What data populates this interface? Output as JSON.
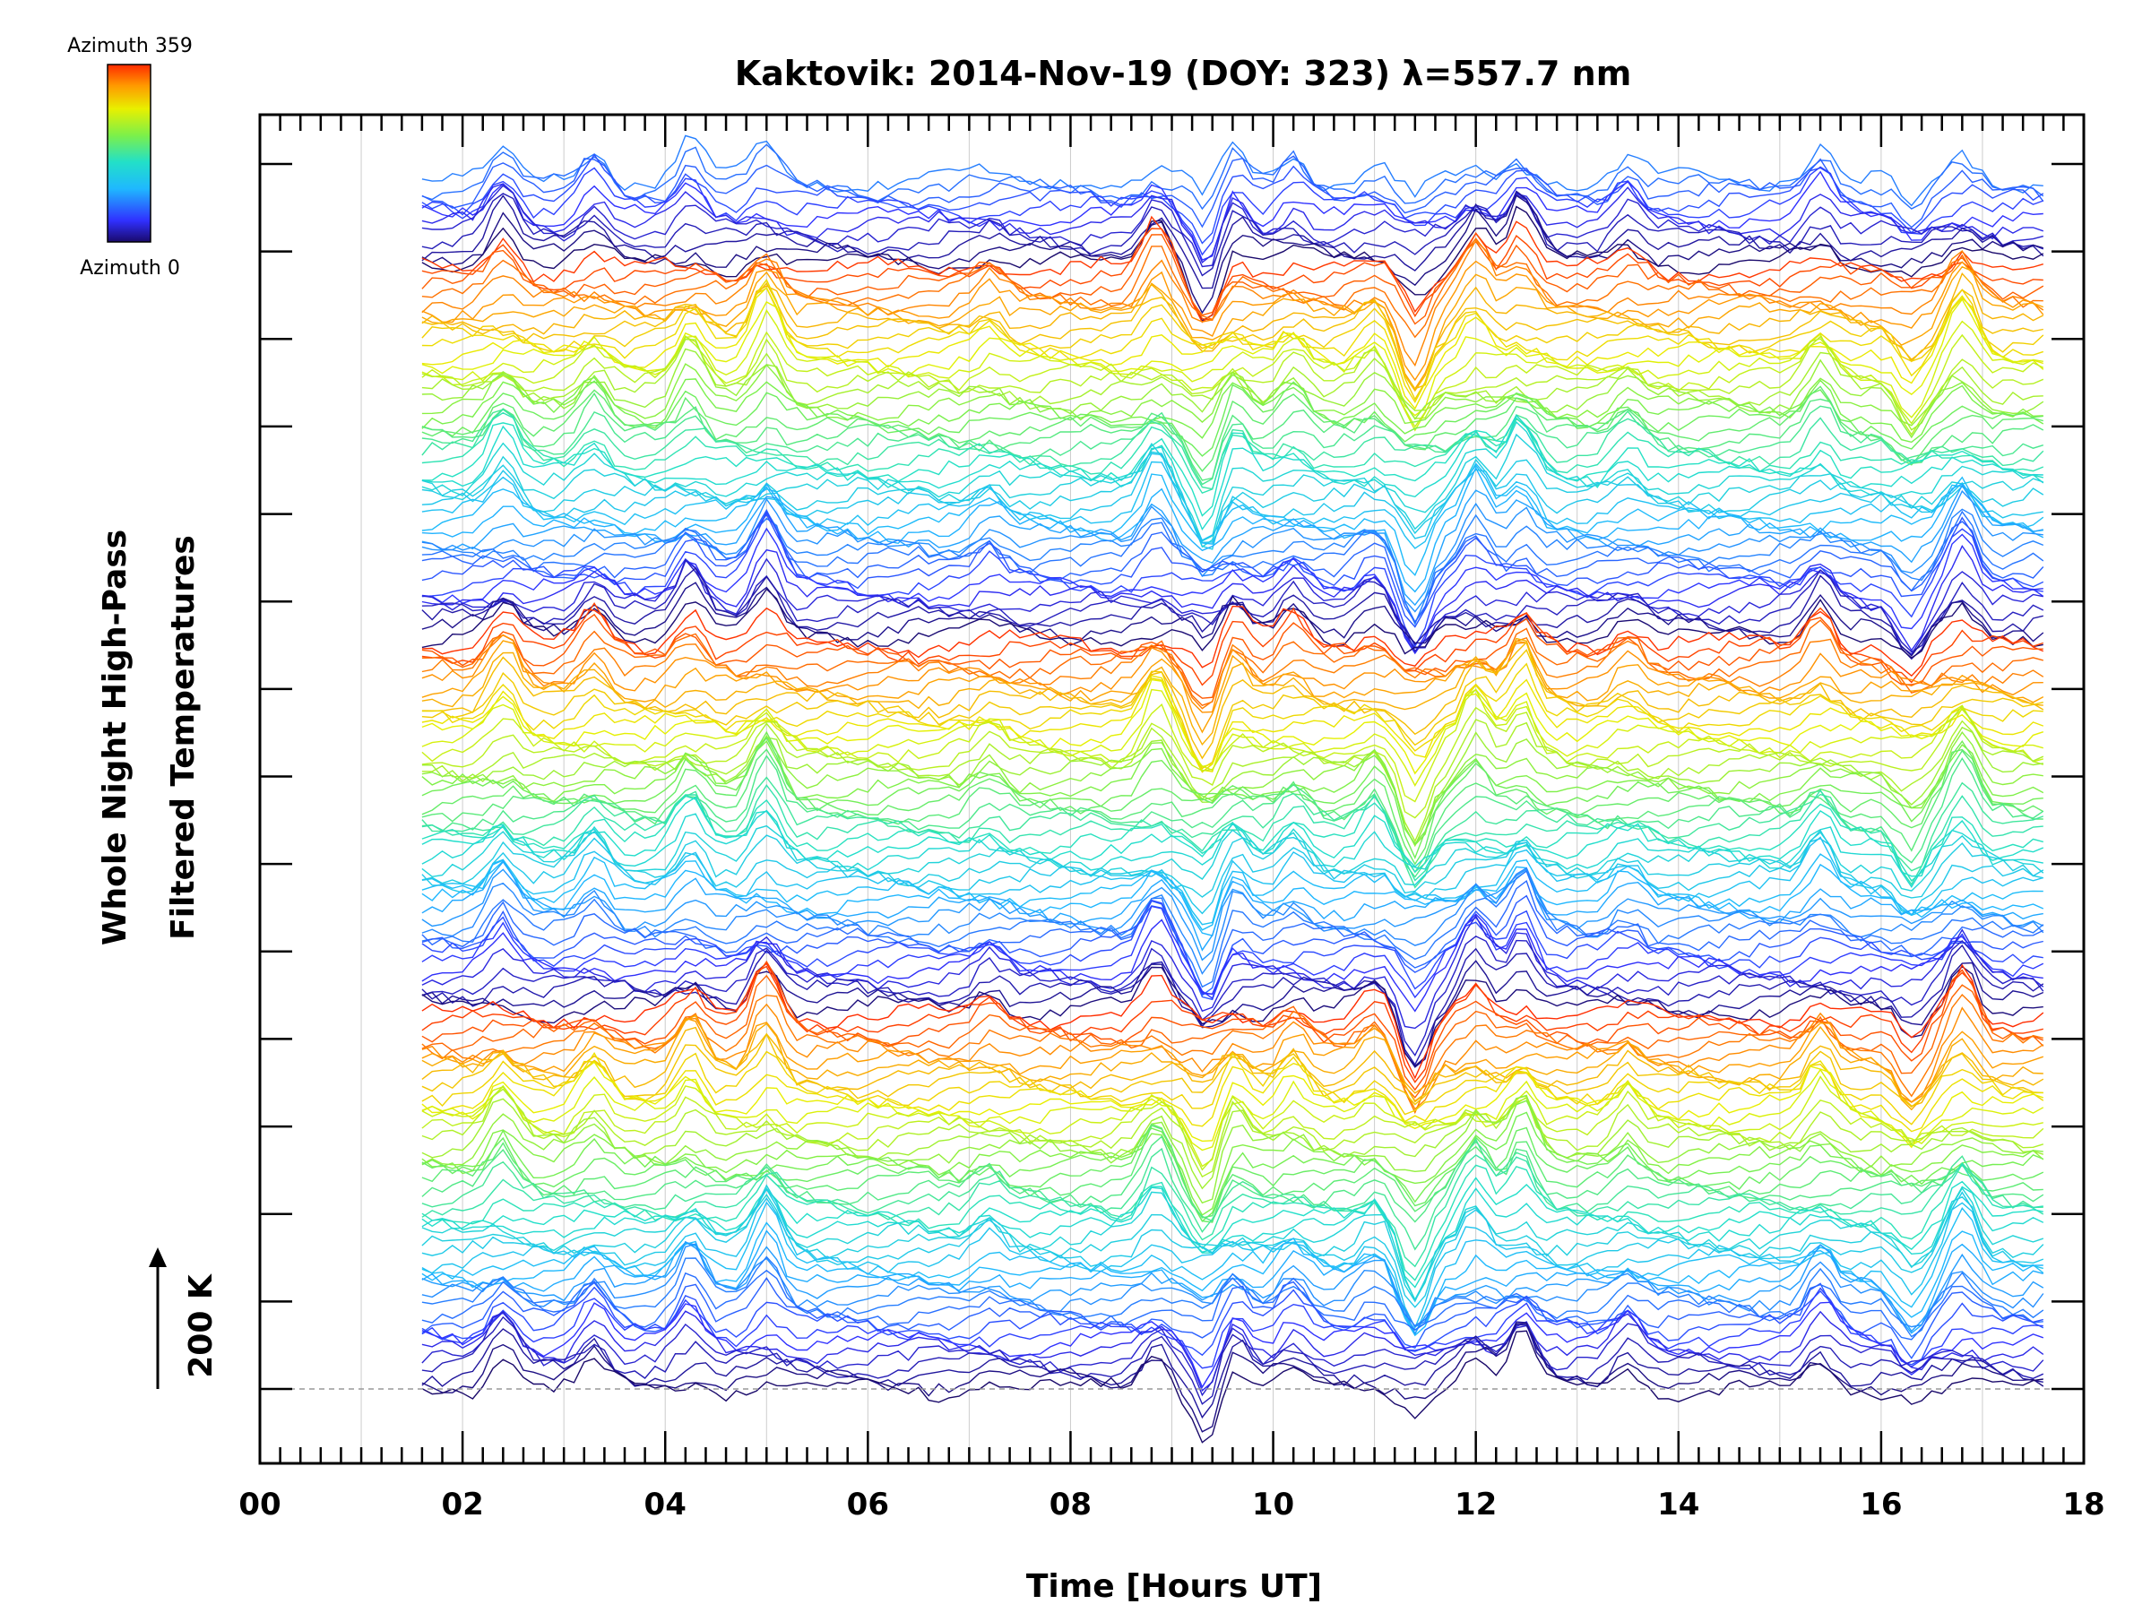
{
  "chart_data": {
    "type": "line",
    "title": "Kaktovik: 2014-Nov-19 (DOY: 323) λ=557.7 nm",
    "xlabel": "Time [Hours UT]",
    "ylabel_line1": "Whole Night High-Pass",
    "ylabel_line2": "Filtered Temperatures",
    "scale_bar_label": "200 K",
    "xlim": [
      0,
      18
    ],
    "x_ticks": [
      "00",
      "02",
      "04",
      "06",
      "08",
      "10",
      "12",
      "14",
      "16",
      "18"
    ],
    "x_tick_values": [
      0,
      2,
      4,
      6,
      8,
      10,
      12,
      14,
      16,
      18
    ],
    "data_x_range": [
      1.6,
      17.6
    ],
    "colorbar": {
      "top_label": "Azimuth 359",
      "bottom_label": "Azimuth 0",
      "min": 0,
      "max": 359,
      "colormap": "rainbow"
    },
    "series_description": "Stacked high-pass filtered temperature traces, one per azimuth (0–359), offset vertically; baseline dashed at lowest trace",
    "series_count": 160,
    "feature_times": [
      2.4,
      3.3,
      4.25,
      5.0,
      7.2,
      8.85,
      9.35,
      9.6,
      10.2,
      11.0,
      11.4,
      12.0,
      12.45,
      13.5,
      15.4,
      16.3,
      16.8
    ],
    "feature_amplitudes": [
      1.0,
      0.8,
      1.0,
      1.3,
      0.5,
      1.1,
      -1.2,
      0.8,
      0.7,
      0.6,
      -1.5,
      1.1,
      1.2,
      0.6,
      0.9,
      -0.9,
      1.2
    ],
    "colors": {
      "axis": "#000000",
      "grid": "#cccccc",
      "baseline": "#999999"
    }
  }
}
